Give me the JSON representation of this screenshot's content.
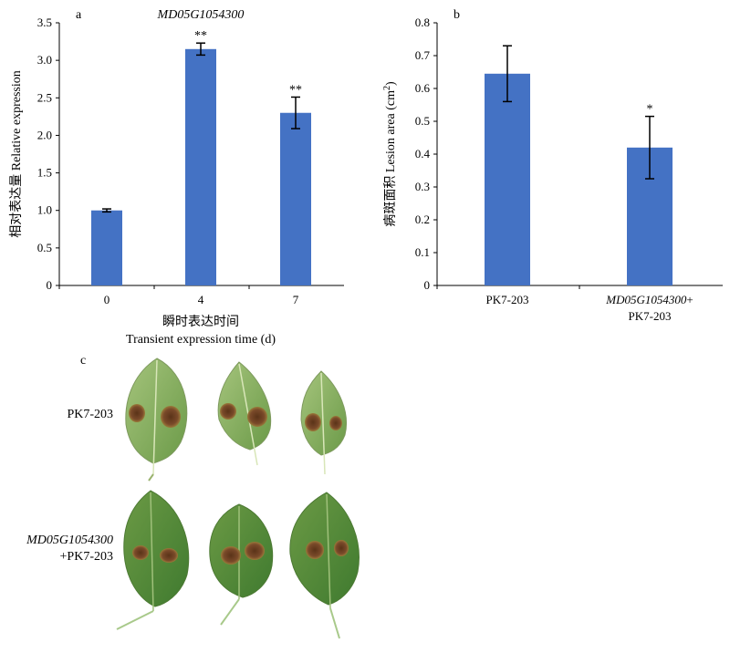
{
  "chart_data": [
    {
      "panel": "a",
      "type": "bar",
      "title": "MD05G1054300",
      "categories": [
        "0",
        "4",
        "7"
      ],
      "values": [
        1.0,
        3.15,
        2.3
      ],
      "errors": [
        0.02,
        0.08,
        0.21
      ],
      "significance": [
        "",
        "**",
        "**"
      ],
      "ylabel": "相对表达量 Relative expression",
      "xlabel_cn": "瞬时表达时间",
      "xlabel_en": "Transient expression time (d)",
      "ylim": [
        0,
        3.5
      ],
      "yticks": [
        "0",
        "0.5",
        "1.0",
        "1.5",
        "2.0",
        "2.5",
        "3.0",
        "3.5"
      ],
      "bar_color": "#4472C4",
      "grid": false
    },
    {
      "panel": "b",
      "type": "bar",
      "categories": [
        {
          "line1": "PK7-203",
          "line2": "",
          "italic_part": ""
        },
        {
          "line1": "+",
          "line2": "PK7-203",
          "italic_part": "MD05G1054300"
        }
      ],
      "values": [
        0.645,
        0.42
      ],
      "errors": [
        0.085,
        0.095
      ],
      "significance": [
        "",
        "*"
      ],
      "ylabel_cn": "病斑面积",
      "ylabel_en": "Lesion area (cm",
      "ylabel_sup": "2",
      "ylabel_close": ")",
      "ylim": [
        0,
        0.8
      ],
      "yticks": [
        "0",
        "0.1",
        "0.2",
        "0.3",
        "0.4",
        "0.5",
        "0.6",
        "0.7",
        "0.8"
      ],
      "bar_color": "#4472C4",
      "grid": false
    }
  ],
  "photo_panel": {
    "letter": "c",
    "rows": [
      {
        "label_italic": "",
        "label": "PK7-203",
        "leaves": 3
      },
      {
        "label_italic": "MD05G1054300",
        "label": "+PK7-203",
        "leaves": 3
      }
    ],
    "leaf_color": "#7fa85a",
    "lesion_color": "#7a4a2a"
  }
}
